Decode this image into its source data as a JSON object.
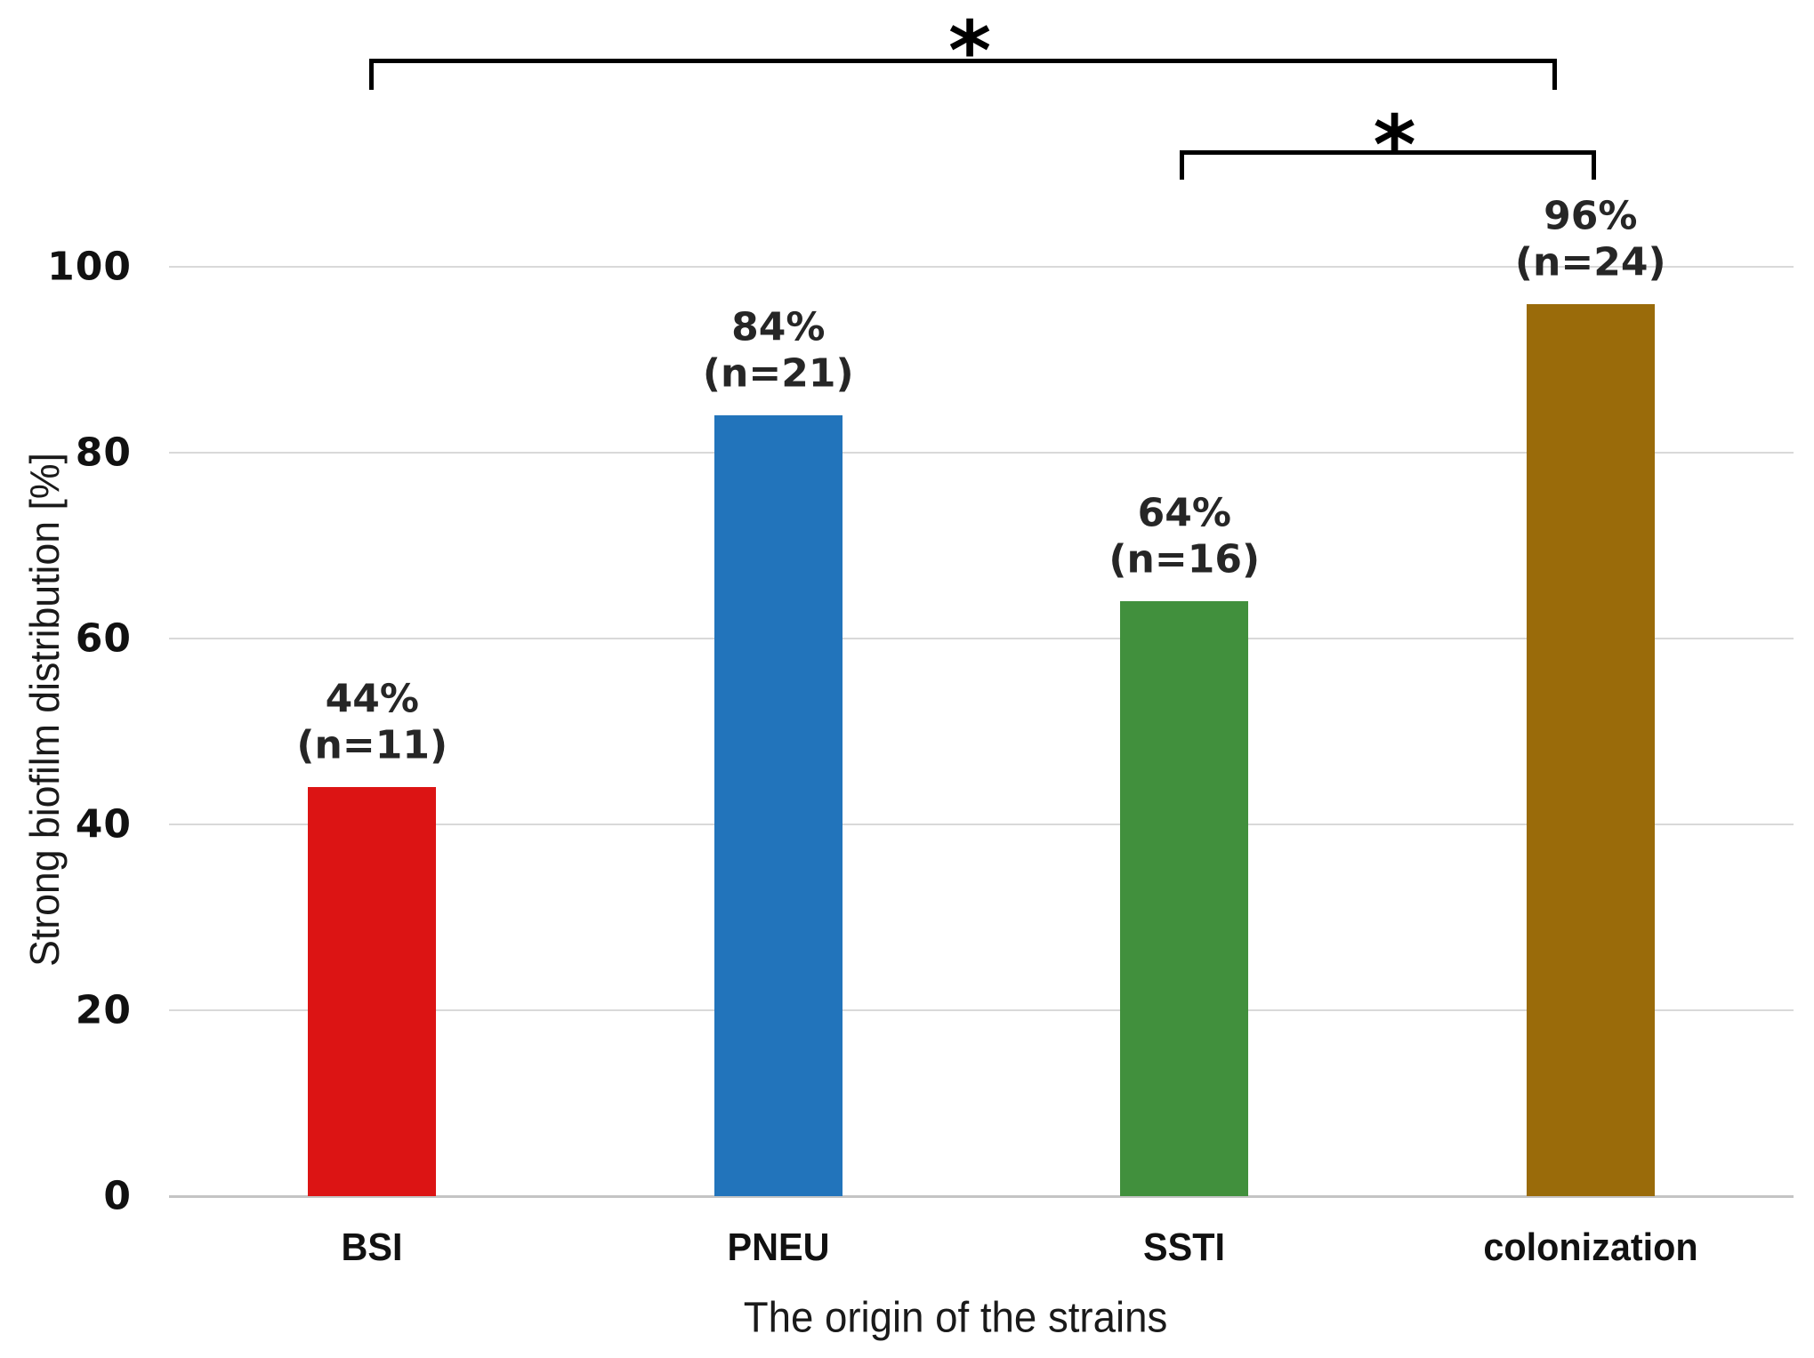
{
  "chart_data": {
    "type": "bar",
    "title": "",
    "categories": [
      "BSI",
      "PNEU",
      "SSTI",
      "colonization"
    ],
    "values": [
      44,
      84,
      64,
      96
    ],
    "n_values": [
      11,
      21,
      16,
      24
    ],
    "value_labels": [
      "44%",
      "84%",
      "64%",
      "96%"
    ],
    "n_labels": [
      "(n=11)",
      "(n=21)",
      "(n=16)",
      "(n=24)"
    ],
    "bar_colors": [
      "#dc1414",
      "#2274bb",
      "#41903d",
      "#9a6b0a"
    ],
    "xlabel": "The origin of the strains",
    "ylabel": "Strong biofilm distribution [%]",
    "ylim": [
      0,
      100
    ],
    "yticks": [
      0,
      20,
      40,
      60,
      80,
      100
    ],
    "ytick_labels": [
      "0",
      "20",
      "40",
      "60",
      "80",
      "100"
    ],
    "grid": "horizontal",
    "legend": "none",
    "colors": {
      "gridline": "#d9d9d9",
      "axis_line": "#c4c4c4",
      "text": "#1a1a1a",
      "bracket": "#000000"
    },
    "annotations": [
      {
        "type": "significance_bracket",
        "between": [
          "BSI",
          "colonization"
        ],
        "label": "*"
      },
      {
        "type": "significance_bracket",
        "between": [
          "SSTI",
          "colonization"
        ],
        "label": "*"
      }
    ]
  }
}
